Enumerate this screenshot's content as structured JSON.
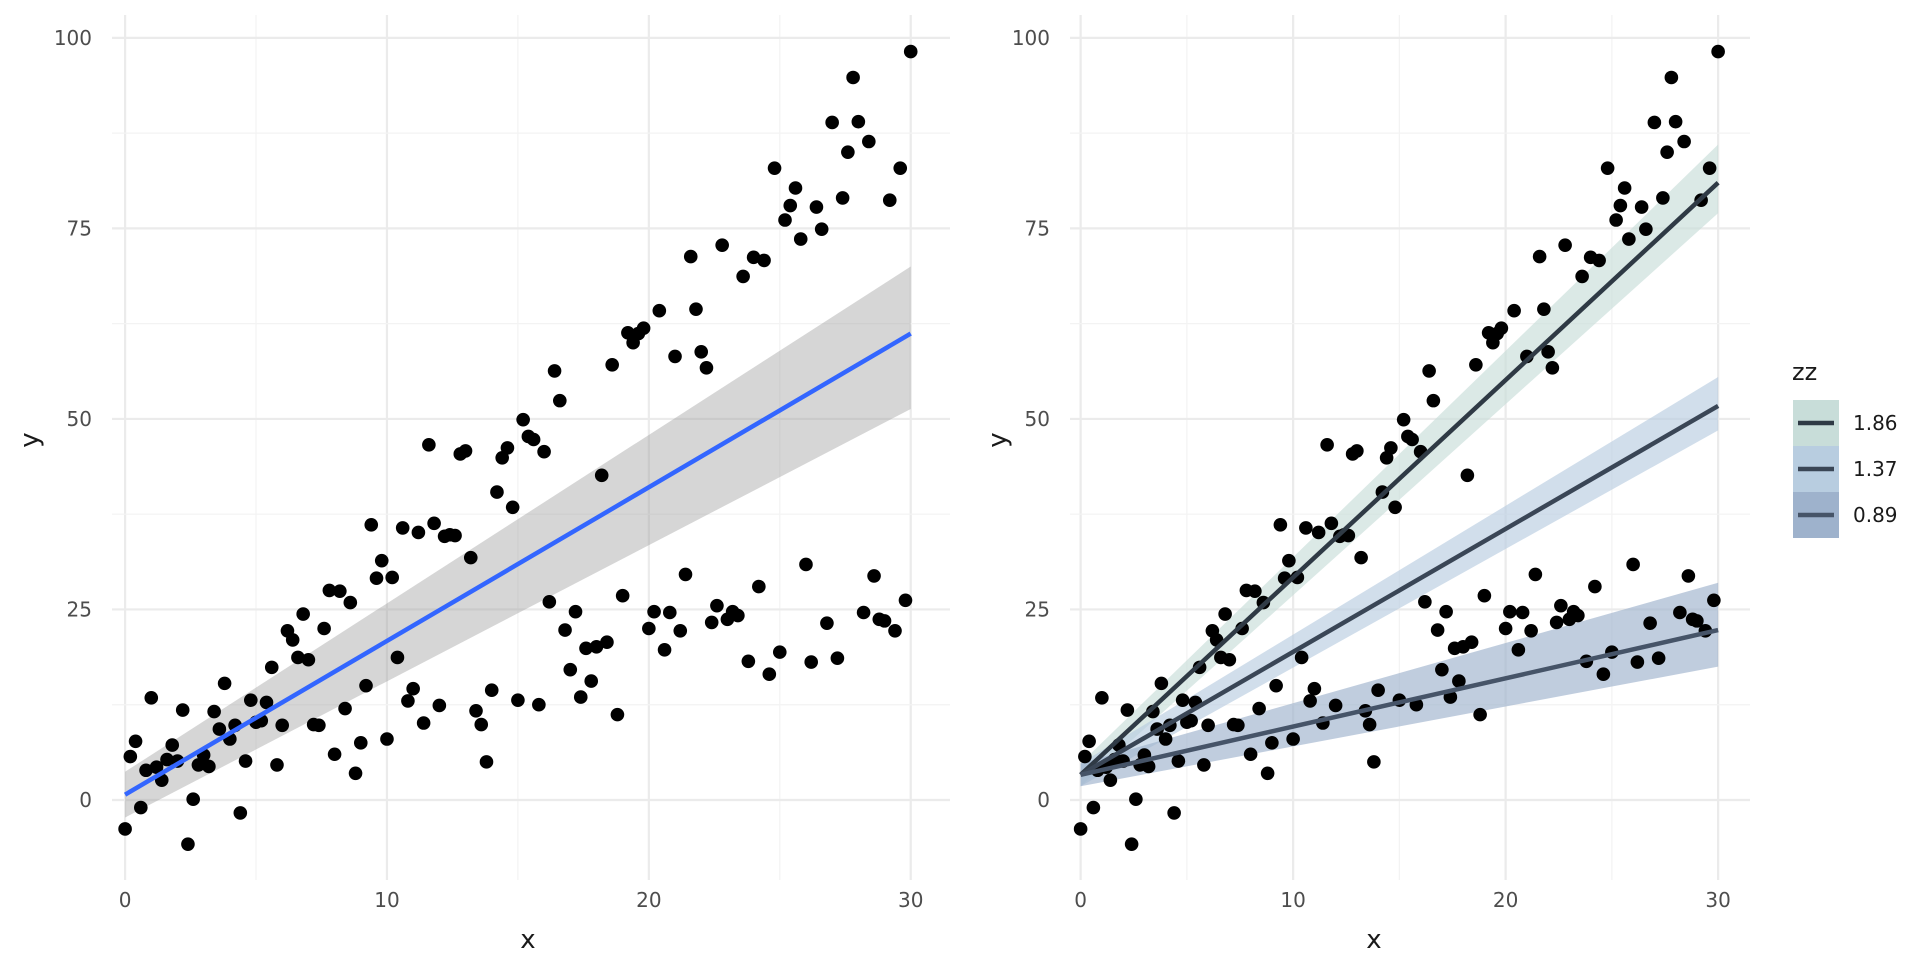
{
  "chart_data": [
    {
      "type": "scatter",
      "xlabel": "x",
      "ylabel": "y",
      "xlim": [
        -0.5,
        31.5
      ],
      "ylim": [
        -10.5,
        103
      ],
      "x_ticks": [
        0,
        10,
        20,
        30
      ],
      "y_ticks": [
        0,
        25,
        50,
        75,
        100
      ],
      "x_tick_labels": [
        "0",
        "10",
        "20",
        "30"
      ],
      "y_tick_labels": [
        "0",
        "25",
        "50",
        "75",
        "100"
      ],
      "grid": true,
      "point_color": "#000000",
      "points": [
        [
          0,
          -3.8
        ],
        [
          0.2,
          5.7
        ],
        [
          0.4,
          7.7
        ],
        [
          0.6,
          -1
        ],
        [
          0.8,
          3.9
        ],
        [
          1,
          13.4
        ],
        [
          1.2,
          4.3
        ],
        [
          1.4,
          2.6
        ],
        [
          1.6,
          5.3
        ],
        [
          1.8,
          7.2
        ],
        [
          2,
          5.1
        ],
        [
          2.2,
          11.8
        ],
        [
          2.4,
          -5.8
        ],
        [
          2.6,
          0.1
        ],
        [
          2.8,
          4.6
        ],
        [
          3,
          5.9
        ],
        [
          3.2,
          4.4
        ],
        [
          3.4,
          11.6
        ],
        [
          3.6,
          9.3
        ],
        [
          3.8,
          15.3
        ],
        [
          4,
          8
        ],
        [
          4.2,
          9.8
        ],
        [
          4.4,
          -1.7
        ],
        [
          4.6,
          5.1
        ],
        [
          4.8,
          13.1
        ],
        [
          5,
          10.2
        ],
        [
          5.2,
          10.4
        ],
        [
          5.4,
          12.8
        ],
        [
          5.6,
          17.4
        ],
        [
          5.8,
          4.6
        ],
        [
          6,
          9.8
        ],
        [
          6.2,
          22.2
        ],
        [
          6.4,
          21
        ],
        [
          6.6,
          18.7
        ],
        [
          6.8,
          24.4
        ],
        [
          7,
          18.4
        ],
        [
          7.2,
          9.9
        ],
        [
          7.4,
          9.8
        ],
        [
          7.6,
          22.5
        ],
        [
          7.8,
          27.5
        ],
        [
          8,
          6
        ],
        [
          8.2,
          27.4
        ],
        [
          8.4,
          12
        ],
        [
          8.6,
          25.9
        ],
        [
          8.8,
          3.5
        ],
        [
          9,
          7.5
        ],
        [
          9.2,
          15
        ],
        [
          9.4,
          36.1
        ],
        [
          9.6,
          29.1
        ],
        [
          9.8,
          31.4
        ],
        [
          10,
          8
        ],
        [
          10.2,
          29.2
        ],
        [
          10.4,
          18.7
        ],
        [
          10.6,
          35.7
        ],
        [
          10.8,
          13
        ],
        [
          11,
          14.6
        ],
        [
          11.2,
          35.1
        ],
        [
          11.4,
          10.1
        ],
        [
          11.6,
          46.6
        ],
        [
          11.8,
          36.3
        ],
        [
          12,
          12.4
        ],
        [
          12.2,
          34.6
        ],
        [
          12.4,
          34.8
        ],
        [
          12.6,
          34.7
        ],
        [
          12.8,
          45.4
        ],
        [
          13,
          45.8
        ],
        [
          13.2,
          31.8
        ],
        [
          13.4,
          11.7
        ],
        [
          13.6,
          9.9
        ],
        [
          13.8,
          5
        ],
        [
          14,
          14.4
        ],
        [
          14.2,
          40.4
        ],
        [
          14.4,
          44.9
        ],
        [
          14.6,
          46.2
        ],
        [
          14.8,
          38.4
        ],
        [
          15,
          13.1
        ],
        [
          15.2,
          49.9
        ],
        [
          15.4,
          47.7
        ],
        [
          15.6,
          47.3
        ],
        [
          15.8,
          12.5
        ],
        [
          16,
          45.7
        ],
        [
          16.2,
          26
        ],
        [
          16.4,
          56.3
        ],
        [
          16.6,
          52.4
        ],
        [
          16.8,
          22.3
        ],
        [
          17,
          17.1
        ],
        [
          17.2,
          24.7
        ],
        [
          17.4,
          13.5
        ],
        [
          17.6,
          19.9
        ],
        [
          17.8,
          15.6
        ],
        [
          18,
          20.1
        ],
        [
          18.2,
          42.6
        ],
        [
          18.4,
          20.7
        ],
        [
          18.6,
          57.1
        ],
        [
          18.8,
          11.2
        ],
        [
          19,
          26.8
        ],
        [
          19.2,
          61.3
        ],
        [
          19.4,
          60
        ],
        [
          19.6,
          61.2
        ],
        [
          19.8,
          61.9
        ],
        [
          20,
          22.5
        ],
        [
          20.2,
          24.7
        ],
        [
          20.4,
          64.2
        ],
        [
          20.6,
          19.7
        ],
        [
          20.8,
          24.6
        ],
        [
          21,
          58.2
        ],
        [
          21.2,
          22.2
        ],
        [
          21.4,
          29.6
        ],
        [
          21.6,
          71.3
        ],
        [
          21.8,
          64.4
        ],
        [
          22,
          58.8
        ],
        [
          22.2,
          56.7
        ],
        [
          22.4,
          23.3
        ],
        [
          22.6,
          25.5
        ],
        [
          22.8,
          72.8
        ],
        [
          23,
          23.7
        ],
        [
          23.2,
          24.7
        ],
        [
          23.4,
          24.2
        ],
        [
          23.6,
          68.7
        ],
        [
          23.8,
          18.2
        ],
        [
          24,
          71.2
        ],
        [
          24.2,
          28
        ],
        [
          24.4,
          70.8
        ],
        [
          24.6,
          16.5
        ],
        [
          24.8,
          82.9
        ],
        [
          25,
          19.4
        ],
        [
          25.2,
          76.1
        ],
        [
          25.4,
          78
        ],
        [
          25.6,
          80.3
        ],
        [
          25.8,
          73.6
        ],
        [
          26,
          30.9
        ],
        [
          26.2,
          18.1
        ],
        [
          26.4,
          77.8
        ],
        [
          26.6,
          74.9
        ],
        [
          26.8,
          23.2
        ],
        [
          27,
          88.9
        ],
        [
          27.2,
          18.6
        ],
        [
          27.4,
          79
        ],
        [
          27.6,
          85
        ],
        [
          27.8,
          94.8
        ],
        [
          28,
          89
        ],
        [
          28.2,
          24.6
        ],
        [
          28.4,
          86.4
        ],
        [
          28.6,
          29.4
        ],
        [
          28.8,
          23.7
        ],
        [
          29,
          23.5
        ],
        [
          29.2,
          78.7
        ],
        [
          29.4,
          22.2
        ],
        [
          29.6,
          82.9
        ],
        [
          29.8,
          26.2
        ],
        [
          30,
          98.2
        ]
      ],
      "fit": {
        "method": "linear",
        "x": [
          0,
          30
        ],
        "y": [
          0.7,
          61.2
        ],
        "band_lower": [
          -2.3,
          51.3
        ],
        "band_upper": [
          3.7,
          70
        ],
        "line_color": "#3366ff",
        "band_color": "#999999"
      }
    },
    {
      "type": "scatter",
      "xlabel": "x",
      "ylabel": "y",
      "xlim": [
        -0.5,
        31.5
      ],
      "ylim": [
        -10.5,
        103
      ],
      "x_ticks": [
        0,
        10,
        20,
        30
      ],
      "y_ticks": [
        0,
        25,
        50,
        75,
        100
      ],
      "x_tick_labels": [
        "0",
        "10",
        "20",
        "30"
      ],
      "y_tick_labels": [
        "0",
        "25",
        "50",
        "75",
        "100"
      ],
      "grid": true,
      "point_color": "#000000",
      "points_source": "same as first panel",
      "legend": {
        "title": "zz",
        "placement": "right",
        "entries": [
          {
            "label": "1.86",
            "line_color": "#2f3a45",
            "fill_color": "#c8ddd9"
          },
          {
            "label": "1.37",
            "line_color": "#3a4656",
            "fill_color": "#b8cde0"
          },
          {
            "label": "0.89",
            "line_color": "#465468",
            "fill_color": "#9eb2cc"
          }
        ]
      },
      "series": [
        {
          "name": "1.86",
          "x": [
            0,
            30
          ],
          "y": [
            3.3,
            81
          ],
          "band_lower": [
            1.8,
            77
          ],
          "band_upper": [
            4.8,
            86
          ],
          "line_color": "#2f3a45",
          "band_color": "#c8ddd9"
        },
        {
          "name": "1.37",
          "x": [
            0,
            30
          ],
          "y": [
            3.3,
            51.7
          ],
          "band_lower": [
            1.8,
            48.5
          ],
          "band_upper": [
            4.8,
            55.5
          ],
          "line_color": "#3a4656",
          "band_color": "#b8cde0"
        },
        {
          "name": "0.89",
          "x": [
            0,
            30
          ],
          "y": [
            3.3,
            22.3
          ],
          "band_lower": [
            1.8,
            17.5
          ],
          "band_upper": [
            4.8,
            28.5
          ],
          "line_color": "#465468",
          "band_color": "#9eb2cc"
        }
      ]
    }
  ]
}
